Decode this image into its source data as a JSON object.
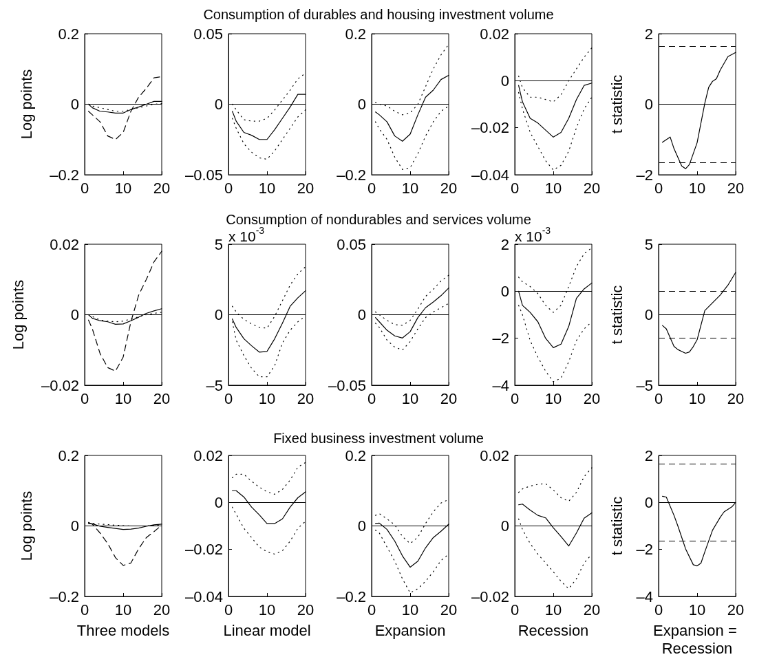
{
  "chart_data": [
    {
      "type": "line",
      "ylabel": "Log points",
      "x": [
        1,
        2,
        4,
        6,
        8,
        10,
        12,
        14,
        16,
        18,
        20
      ],
      "xlim": [
        0,
        20
      ],
      "xticks": [
        0,
        10,
        20
      ],
      "ylim": [
        -0.2,
        0.2
      ],
      "yticks": [
        {
          "value": -0.2,
          "label": "–0.2"
        },
        0,
        0.2
      ],
      "marker": "none",
      "ref_lines": [
        {
          "axis": "y",
          "value": 0,
          "line_style": "solid",
          "color": "#000000"
        }
      ],
      "series": [
        {
          "color": "#000000",
          "line_style": "solid",
          "values": [
            0,
            -0.01,
            -0.02,
            -0.022,
            -0.025,
            -0.025,
            -0.015,
            -0.008,
            0,
            0.008,
            0.008
          ]
        },
        {
          "color": "#000000",
          "line_style": "dashed",
          "values": [
            -0.02,
            -0.03,
            -0.05,
            -0.09,
            -0.1,
            -0.08,
            -0.02,
            0.02,
            0.045,
            0.075,
            0.078
          ]
        },
        {
          "color": "#000000",
          "line_style": "dotted",
          "values": [
            0,
            -0.005,
            -0.01,
            -0.015,
            -0.02,
            -0.02,
            -0.015,
            -0.01,
            -0.005,
            0,
            0.002
          ]
        }
      ]
    },
    {
      "type": "line",
      "x": [
        1,
        2,
        4,
        6,
        8,
        10,
        12,
        14,
        16,
        18,
        20
      ],
      "xlim": [
        0,
        20
      ],
      "xticks": [
        0,
        10,
        20
      ],
      "ylim": [
        -0.05,
        0.05
      ],
      "yticks": [
        {
          "value": -0.05,
          "label": "–0.05"
        },
        0,
        0.05
      ],
      "marker": "none",
      "ref_lines": [
        {
          "axis": "y",
          "value": 0,
          "line_style": "solid",
          "color": "#000000"
        }
      ],
      "series": [
        {
          "color": "#000000",
          "line_style": "solid",
          "values": [
            -0.005,
            -0.012,
            -0.02,
            -0.022,
            -0.025,
            -0.025,
            -0.018,
            -0.01,
            -0.002,
            0.007,
            0.007
          ]
        },
        {
          "color": "#000000",
          "line_style": "dotted",
          "values": [
            0,
            -0.004,
            -0.011,
            -0.012,
            -0.012,
            -0.01,
            -0.004,
            0.003,
            0.01,
            0.018,
            0.022
          ]
        },
        {
          "color": "#000000",
          "line_style": "dotted",
          "values": [
            -0.01,
            -0.017,
            -0.028,
            -0.034,
            -0.038,
            -0.039,
            -0.033,
            -0.025,
            -0.017,
            -0.009,
            -0.004
          ]
        }
      ]
    },
    {
      "type": "line",
      "title": "Consumption of durables and housing investment volume",
      "x": [
        1,
        2,
        4,
        6,
        8,
        10,
        12,
        14,
        16,
        18,
        20
      ],
      "xlim": [
        0,
        20
      ],
      "xticks": [
        0,
        10,
        20
      ],
      "ylim": [
        -0.2,
        0.2
      ],
      "yticks": [
        {
          "value": -0.2,
          "label": "–0.2"
        },
        0,
        0.2
      ],
      "marker": "none",
      "ref_lines": [
        {
          "axis": "y",
          "value": 0,
          "line_style": "solid",
          "color": "#000000"
        }
      ],
      "series": [
        {
          "color": "#000000",
          "line_style": "solid",
          "values": [
            -0.022,
            -0.03,
            -0.05,
            -0.09,
            -0.105,
            -0.085,
            -0.03,
            0.02,
            0.04,
            0.07,
            0.082
          ]
        },
        {
          "color": "#000000",
          "line_style": "dotted",
          "values": [
            0.005,
            0,
            -0.005,
            -0.02,
            -0.03,
            -0.025,
            0,
            0.05,
            0.1,
            0.14,
            0.17
          ]
        },
        {
          "color": "#000000",
          "line_style": "dotted",
          "values": [
            -0.05,
            -0.07,
            -0.1,
            -0.15,
            -0.185,
            -0.18,
            -0.14,
            -0.09,
            -0.05,
            -0.02,
            -0.005
          ]
        }
      ]
    },
    {
      "type": "line",
      "x": [
        1,
        2,
        4,
        6,
        8,
        10,
        12,
        14,
        16,
        18,
        20
      ],
      "xlim": [
        0,
        20
      ],
      "xticks": [
        0,
        10,
        20
      ],
      "ylim": [
        -0.04,
        0.02
      ],
      "yticks": [
        {
          "value": -0.04,
          "label": "–0.04"
        },
        {
          "value": -0.02,
          "label": "–0.02"
        },
        0,
        0.02
      ],
      "marker": "none",
      "ref_lines": [
        {
          "axis": "y",
          "value": 0,
          "line_style": "solid",
          "color": "#000000"
        }
      ],
      "series": [
        {
          "color": "#000000",
          "line_style": "solid",
          "values": [
            -0.002,
            -0.009,
            -0.016,
            -0.018,
            -0.021,
            -0.024,
            -0.022,
            -0.016,
            -0.008,
            -0.002,
            -0.001
          ]
        },
        {
          "color": "#000000",
          "line_style": "dotted",
          "values": [
            0.002,
            -0.003,
            -0.007,
            -0.007,
            -0.008,
            -0.009,
            -0.006,
            0,
            0.005,
            0.01,
            0.014
          ]
        },
        {
          "color": "#000000",
          "line_style": "dotted",
          "values": [
            -0.005,
            -0.012,
            -0.022,
            -0.028,
            -0.034,
            -0.038,
            -0.036,
            -0.03,
            -0.02,
            -0.012,
            -0.007
          ]
        }
      ]
    },
    {
      "type": "line",
      "ylabel": "t statistic",
      "xlim": [
        0,
        20
      ],
      "xticks": [
        0,
        10,
        20
      ],
      "ylim": [
        -2,
        2
      ],
      "yticks": [
        {
          "value": -2,
          "label": "–2"
        },
        0,
        2
      ],
      "marker": "none",
      "ref_lines": [
        {
          "axis": "y",
          "value": 0,
          "line_style": "solid",
          "color": "#000000"
        },
        {
          "axis": "y",
          "value": 1.65,
          "line_style": "dashed",
          "color": "#000000"
        },
        {
          "axis": "y",
          "value": -1.65,
          "line_style": "dashed",
          "color": "#000000"
        }
      ],
      "series": [
        {
          "color": "#000000",
          "line_style": "solid",
          "x": [
            1,
            3,
            4,
            6,
            7,
            8,
            10,
            12,
            13,
            14,
            15,
            16,
            18,
            20
          ],
          "values": [
            -1.08,
            -0.93,
            -1.26,
            -1.75,
            -1.83,
            -1.71,
            -1.09,
            0.03,
            0.48,
            0.65,
            0.72,
            0.97,
            1.35,
            1.47
          ]
        }
      ]
    },
    {
      "type": "line",
      "ylabel": "Log points",
      "x": [
        1,
        2,
        4,
        6,
        8,
        10,
        12,
        14,
        16,
        18,
        20
      ],
      "xlim": [
        0,
        20
      ],
      "xticks": [
        0,
        10,
        20
      ],
      "ylim": [
        -0.02,
        0.02
      ],
      "yticks": [
        {
          "value": -0.02,
          "label": "–0.02"
        },
        0,
        0.02
      ],
      "marker": "none",
      "ref_lines": [
        {
          "axis": "y",
          "value": 0,
          "line_style": "solid",
          "color": "#000000"
        }
      ],
      "series": [
        {
          "color": "#000000",
          "line_style": "solid",
          "values": [
            0,
            -0.001,
            -0.0017,
            -0.002,
            -0.0027,
            -0.0026,
            -0.0017,
            -0.0007,
            0.0004,
            0.0011,
            0.0017
          ]
        },
        {
          "color": "#000000",
          "line_style": "dashed",
          "values": [
            -0.0015,
            -0.004,
            -0.011,
            -0.015,
            -0.016,
            -0.012,
            -0.002,
            0.0055,
            0.01,
            0.015,
            0.018
          ]
        },
        {
          "color": "#000000",
          "line_style": "dotted",
          "values": [
            0,
            -0.0005,
            -0.0015,
            -0.0018,
            -0.002,
            -0.0018,
            -0.0012,
            -0.0006,
            0,
            0.0004,
            0.0007
          ]
        }
      ]
    },
    {
      "type": "line",
      "annotations": [
        "x 10$^{-3}$"
      ],
      "x": [
        1,
        2,
        4,
        6,
        8,
        10,
        12,
        14,
        16,
        18,
        20
      ],
      "xlim": [
        0,
        20
      ],
      "xticks": [
        0,
        10,
        20
      ],
      "ylim": [
        -5,
        5
      ],
      "yticks": [
        {
          "value": -5,
          "label": "–5"
        },
        0,
        5
      ],
      "marker": "none",
      "ref_lines": [
        {
          "axis": "y",
          "value": 0,
          "line_style": "solid",
          "color": "#000000"
        }
      ],
      "series": [
        {
          "color": "#000000",
          "line_style": "solid",
          "values": [
            -0.3,
            -0.9,
            -1.7,
            -2.2,
            -2.65,
            -2.6,
            -1.7,
            -0.6,
            0.6,
            1.2,
            1.7
          ]
        },
        {
          "color": "#000000",
          "line_style": "dotted",
          "values": [
            0.6,
            0.2,
            -0.33,
            -0.65,
            -0.9,
            -0.95,
            -0.1,
            1,
            2.1,
            2.9,
            3.4
          ]
        },
        {
          "color": "#000000",
          "line_style": "dotted",
          "values": [
            -0.5,
            -1.8,
            -2.9,
            -3.8,
            -4.4,
            -4.4,
            -3.6,
            -2,
            -1.1,
            -0.5,
            -0.1
          ]
        }
      ]
    },
    {
      "type": "line",
      "title": "Consumption of nondurables and services volume",
      "x": [
        1,
        2,
        4,
        6,
        8,
        10,
        12,
        14,
        16,
        18,
        20
      ],
      "xlim": [
        0,
        20
      ],
      "xticks": [
        0,
        10,
        20
      ],
      "ylim": [
        -0.05,
        0.05
      ],
      "yticks": [
        {
          "value": -0.05,
          "label": "–0.05"
        },
        0,
        0.05
      ],
      "marker": "none",
      "ref_lines": [
        {
          "axis": "y",
          "value": 0,
          "line_style": "solid",
          "color": "#000000"
        }
      ],
      "series": [
        {
          "color": "#000000",
          "line_style": "solid",
          "values": [
            -0.002,
            -0.005,
            -0.011,
            -0.015,
            -0.0165,
            -0.012,
            -0.002,
            0.005,
            0.009,
            0.0135,
            0.019
          ]
        },
        {
          "color": "#000000",
          "line_style": "dotted",
          "values": [
            0.002,
            0,
            -0.004,
            -0.007,
            -0.0075,
            -0.004,
            0.004,
            0.013,
            0.018,
            0.024,
            0.028
          ]
        },
        {
          "color": "#000000",
          "line_style": "dotted",
          "values": [
            -0.006,
            -0.009,
            -0.018,
            -0.023,
            -0.025,
            -0.019,
            -0.01,
            -0.002,
            0.002,
            0.005,
            0.008
          ]
        }
      ]
    },
    {
      "type": "line",
      "annotations": [
        "x 10$^{-3}$"
      ],
      "x": [
        1,
        2,
        4,
        6,
        8,
        10,
        12,
        14,
        16,
        18,
        20
      ],
      "xlim": [
        0,
        20
      ],
      "xticks": [
        0,
        10,
        20
      ],
      "ylim": [
        -4,
        2
      ],
      "yticks": [
        {
          "value": -4,
          "label": "–4"
        },
        {
          "value": -2,
          "label": "–2"
        },
        0,
        2
      ],
      "marker": "none",
      "ref_lines": [
        {
          "axis": "y",
          "value": 0,
          "line_style": "solid",
          "color": "#000000"
        }
      ],
      "series": [
        {
          "color": "#000000",
          "line_style": "solid",
          "values": [
            0,
            -0.6,
            -0.9,
            -1.3,
            -2,
            -2.4,
            -2.25,
            -1.5,
            -0.3,
            0.1,
            0.35
          ]
        },
        {
          "color": "#000000",
          "line_style": "dotted",
          "values": [
            0.6,
            0.4,
            0.2,
            -0.1,
            -0.6,
            -0.9,
            -0.6,
            0.2,
            1.05,
            1.6,
            1.85
          ]
        },
        {
          "color": "#000000",
          "line_style": "dotted",
          "values": [
            -0.6,
            -1,
            -2.1,
            -2.8,
            -3.4,
            -3.85,
            -3.7,
            -3,
            -2.1,
            -1.6,
            -1.3
          ]
        }
      ]
    },
    {
      "type": "line",
      "ylabel": "t statistic",
      "xlim": [
        0,
        20
      ],
      "xticks": [
        0,
        10,
        20
      ],
      "ylim": [
        -5,
        5
      ],
      "yticks": [
        {
          "value": -5,
          "label": "–5"
        },
        0,
        5
      ],
      "marker": "none",
      "ref_lines": [
        {
          "axis": "y",
          "value": 0,
          "line_style": "solid",
          "color": "#000000"
        },
        {
          "axis": "y",
          "value": 1.65,
          "line_style": "dashed",
          "color": "#000000"
        },
        {
          "axis": "y",
          "value": -1.65,
          "line_style": "dashed",
          "color": "#000000"
        }
      ],
      "series": [
        {
          "color": "#000000",
          "line_style": "solid",
          "x": [
            1,
            2,
            4,
            5,
            7,
            8,
            9,
            10,
            12,
            14,
            16,
            18,
            20
          ],
          "values": [
            -0.76,
            -1,
            -2.24,
            -2.47,
            -2.73,
            -2.64,
            -2.26,
            -1.77,
            0.3,
            0.85,
            1.4,
            2.1,
            3
          ]
        }
      ]
    },
    {
      "type": "line",
      "ylabel": "Log points",
      "xlabel": "Three models",
      "x": [
        1,
        2,
        4,
        6,
        8,
        10,
        12,
        14,
        16,
        18,
        20
      ],
      "xlim": [
        0,
        20
      ],
      "xticks": [
        0,
        10,
        20
      ],
      "ylim": [
        -0.2,
        0.2
      ],
      "yticks": [
        {
          "value": -0.2,
          "label": "–0.2"
        },
        0,
        0.2
      ],
      "marker": "none",
      "ref_lines": [
        {
          "axis": "y",
          "value": 0,
          "line_style": "solid",
          "color": "#000000"
        }
      ],
      "series": [
        {
          "color": "#000000",
          "line_style": "solid",
          "values": [
            0.007,
            0.006,
            -0.001,
            -0.004,
            -0.007,
            -0.01,
            -0.009,
            -0.006,
            -0.001,
            0.003,
            0.005
          ]
        },
        {
          "color": "#000000",
          "line_style": "dashed",
          "values": [
            0.008,
            0.005,
            -0.02,
            -0.05,
            -0.09,
            -0.112,
            -0.105,
            -0.065,
            -0.033,
            -0.016,
            0.002
          ]
        },
        {
          "color": "#000000",
          "line_style": "dotted",
          "values": [
            0.01,
            0.008,
            0.005,
            0.004,
            0.002,
            0.001,
            0,
            0,
            0,
            0.002,
            0.003
          ]
        }
      ]
    },
    {
      "type": "line",
      "xlabel": "Linear model",
      "x": [
        1,
        2,
        4,
        6,
        8,
        10,
        12,
        14,
        16,
        18,
        20
      ],
      "xlim": [
        0,
        20
      ],
      "xticks": [
        0,
        10,
        20
      ],
      "ylim": [
        -0.04,
        0.02
      ],
      "yticks": [
        {
          "value": -0.04,
          "label": "–0.04"
        },
        {
          "value": -0.02,
          "label": "–0.02"
        },
        0,
        0.02
      ],
      "marker": "none",
      "ref_lines": [
        {
          "axis": "y",
          "value": 0,
          "line_style": "solid",
          "color": "#000000"
        }
      ],
      "series": [
        {
          "color": "#000000",
          "line_style": "solid",
          "values": [
            0.005,
            0.005,
            0.0023,
            -0.002,
            -0.0053,
            -0.009,
            -0.009,
            -0.007,
            -0.002,
            0.002,
            0.0045
          ]
        },
        {
          "color": "#000000",
          "line_style": "dotted",
          "values": [
            0.0105,
            0.012,
            0.012,
            0.009,
            0.0065,
            0.0045,
            0.0035,
            0.0055,
            0.0095,
            0.015,
            0.017
          ]
        },
        {
          "color": "#000000",
          "line_style": "dotted",
          "values": [
            -0.002,
            -0.005,
            -0.011,
            -0.015,
            -0.019,
            -0.021,
            -0.022,
            -0.0205,
            -0.0165,
            -0.011,
            -0.008
          ]
        }
      ]
    },
    {
      "type": "line",
      "title": "Fixed business investment volume",
      "xlabel": "Expansion",
      "x": [
        1,
        2,
        4,
        6,
        8,
        10,
        12,
        14,
        16,
        18,
        20
      ],
      "xlim": [
        0,
        20
      ],
      "xticks": [
        0,
        10,
        20
      ],
      "ylim": [
        -0.2,
        0.2
      ],
      "yticks": [
        {
          "value": -0.2,
          "label": "–0.2"
        },
        0,
        0.2
      ],
      "marker": "none",
      "ref_lines": [
        {
          "axis": "y",
          "value": 0,
          "line_style": "solid",
          "color": "#000000"
        }
      ],
      "series": [
        {
          "color": "#000000",
          "line_style": "solid",
          "values": [
            0.007,
            0.008,
            -0.01,
            -0.043,
            -0.085,
            -0.117,
            -0.1,
            -0.062,
            -0.033,
            -0.015,
            0.005
          ]
        },
        {
          "color": "#000000",
          "line_style": "dotted",
          "values": [
            0.03,
            0.035,
            0.02,
            0.003,
            -0.03,
            -0.05,
            -0.032,
            0.007,
            0.04,
            0.065,
            0.075
          ]
        },
        {
          "color": "#000000",
          "line_style": "dotted",
          "values": [
            -0.012,
            -0.02,
            -0.06,
            -0.1,
            -0.15,
            -0.19,
            -0.178,
            -0.157,
            -0.13,
            -0.098,
            -0.08
          ]
        }
      ]
    },
    {
      "type": "line",
      "xlabel": "Recession",
      "x": [
        1,
        2,
        4,
        6,
        8,
        10,
        12,
        14,
        16,
        18,
        20
      ],
      "xlim": [
        0,
        20
      ],
      "xticks": [
        0,
        10,
        20
      ],
      "ylim": [
        -0.02,
        0.02
      ],
      "yticks": [
        {
          "value": -0.02,
          "label": "–0.02"
        },
        0,
        0.02
      ],
      "marker": "none",
      "ref_lines": [
        {
          "axis": "y",
          "value": 0,
          "line_style": "solid",
          "color": "#000000"
        }
      ],
      "series": [
        {
          "color": "#000000",
          "line_style": "solid",
          "values": [
            0.006,
            0.0062,
            0.0045,
            0.003,
            0.0023,
            -0.0005,
            -0.003,
            -0.0057,
            -0.002,
            0.0022,
            0.0037
          ]
        },
        {
          "color": "#000000",
          "line_style": "dotted",
          "values": [
            0.0095,
            0.0105,
            0.0113,
            0.0118,
            0.012,
            0.0102,
            0.008,
            0.007,
            0.0095,
            0.014,
            0.0165
          ]
        },
        {
          "color": "#000000",
          "line_style": "dotted",
          "values": [
            0.002,
            -0.001,
            -0.005,
            -0.008,
            -0.0105,
            -0.013,
            -0.0157,
            -0.0178,
            -0.015,
            -0.0105,
            -0.008
          ]
        }
      ]
    },
    {
      "type": "line",
      "ylabel": "t statistic",
      "xlabel": "Expansion = Recession",
      "xlim": [
        0,
        20
      ],
      "xticks": [
        0,
        10,
        20
      ],
      "ylim": [
        -4,
        2
      ],
      "yticks": [
        {
          "value": -4,
          "label": "–4"
        },
        {
          "value": -2,
          "label": "–2"
        },
        0,
        2
      ],
      "marker": "none",
      "ref_lines": [
        {
          "axis": "y",
          "value": 0,
          "line_style": "solid",
          "color": "#000000"
        },
        {
          "axis": "y",
          "value": 1.65,
          "line_style": "dashed",
          "color": "#000000"
        },
        {
          "axis": "y",
          "value": -1.65,
          "line_style": "dashed",
          "color": "#000000"
        }
      ],
      "series": [
        {
          "color": "#000000",
          "line_style": "solid",
          "x": [
            1,
            2,
            4,
            5,
            7,
            9,
            10,
            11,
            12,
            14,
            16,
            17,
            19,
            20
          ],
          "values": [
            0.26,
            0.23,
            -0.55,
            -1,
            -1.97,
            -2.65,
            -2.7,
            -2.58,
            -2.1,
            -1.18,
            -0.63,
            -0.4,
            -0.19,
            0
          ]
        }
      ]
    }
  ]
}
